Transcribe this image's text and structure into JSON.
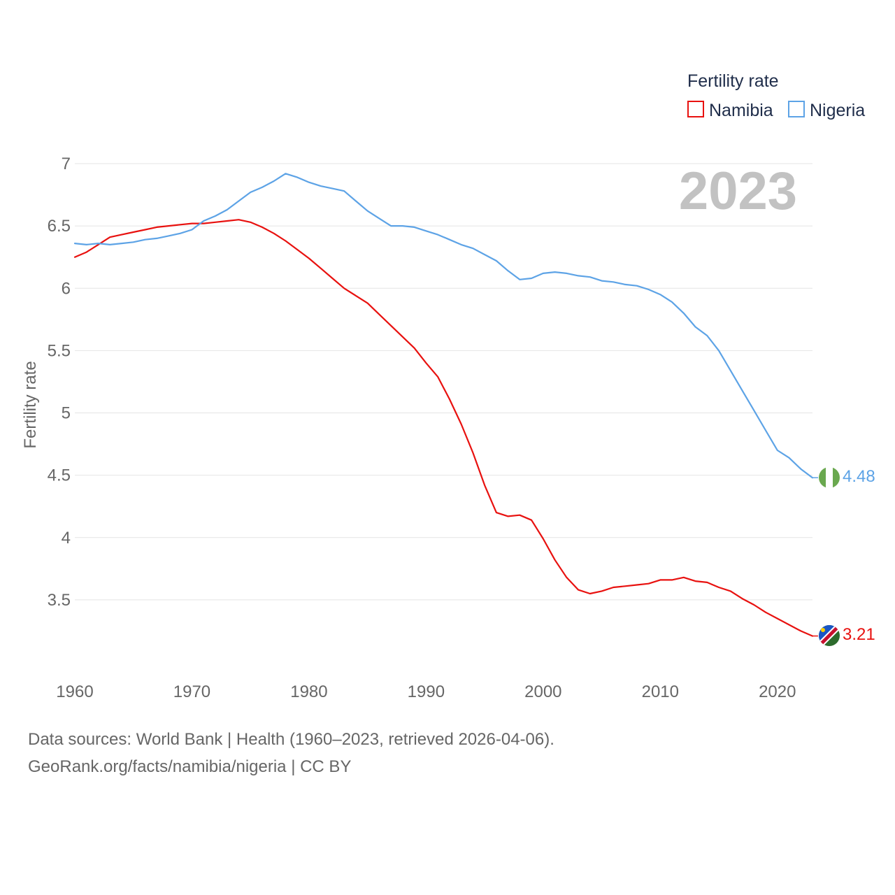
{
  "chart_data": {
    "type": "line",
    "title": "",
    "xlabel": "",
    "ylabel": "Fertility rate",
    "xlim": [
      1960,
      2023
    ],
    "ylim": [
      3.0,
      7.0
    ],
    "x_ticks": [
      "1960",
      "1970",
      "1980",
      "1990",
      "2000",
      "2010",
      "2020"
    ],
    "y_ticks": [
      "7",
      "6.5",
      "6",
      "5.5",
      "5",
      "4.5",
      "4",
      "3.5"
    ],
    "year_label": "2023",
    "legend": {
      "title": "Fertility rate",
      "position": "top-right",
      "entries": [
        "Namibia",
        "Nigeria"
      ]
    },
    "x": [
      1960,
      1961,
      1962,
      1963,
      1964,
      1965,
      1966,
      1967,
      1968,
      1969,
      1970,
      1971,
      1972,
      1973,
      1974,
      1975,
      1976,
      1977,
      1978,
      1979,
      1980,
      1981,
      1982,
      1983,
      1984,
      1985,
      1986,
      1987,
      1988,
      1989,
      1990,
      1991,
      1992,
      1993,
      1994,
      1995,
      1996,
      1997,
      1998,
      1999,
      2000,
      2001,
      2002,
      2003,
      2004,
      2005,
      2006,
      2007,
      2008,
      2009,
      2010,
      2011,
      2012,
      2013,
      2014,
      2015,
      2016,
      2017,
      2018,
      2019,
      2020,
      2021,
      2022,
      2023
    ],
    "series": [
      {
        "name": "Namibia",
        "color": "#e8110f",
        "end_label": "3.21",
        "values": [
          6.25,
          6.29,
          6.35,
          6.41,
          6.43,
          6.45,
          6.47,
          6.49,
          6.5,
          6.51,
          6.52,
          6.52,
          6.53,
          6.54,
          6.55,
          6.53,
          6.49,
          6.44,
          6.38,
          6.31,
          6.24,
          6.16,
          6.08,
          6.0,
          5.94,
          5.88,
          5.79,
          5.7,
          5.61,
          5.52,
          5.4,
          5.29,
          5.11,
          4.91,
          4.68,
          4.42,
          4.2,
          4.17,
          4.18,
          4.14,
          3.99,
          3.82,
          3.68,
          3.58,
          3.55,
          3.57,
          3.6,
          3.61,
          3.62,
          3.63,
          3.66,
          3.66,
          3.68,
          3.65,
          3.64,
          3.6,
          3.57,
          3.51,
          3.46,
          3.4,
          3.35,
          3.3,
          3.25,
          3.21
        ]
      },
      {
        "name": "Nigeria",
        "color": "#5da3e6",
        "end_label": "4.48",
        "values": [
          6.36,
          6.35,
          6.36,
          6.35,
          6.36,
          6.37,
          6.39,
          6.4,
          6.42,
          6.44,
          6.47,
          6.54,
          6.58,
          6.63,
          6.7,
          6.77,
          6.81,
          6.86,
          6.92,
          6.89,
          6.85,
          6.82,
          6.8,
          6.78,
          6.7,
          6.62,
          6.56,
          6.5,
          6.5,
          6.49,
          6.46,
          6.43,
          6.39,
          6.35,
          6.32,
          6.27,
          6.22,
          6.14,
          6.07,
          6.08,
          6.12,
          6.13,
          6.12,
          6.1,
          6.09,
          6.06,
          6.05,
          6.03,
          6.02,
          5.99,
          5.95,
          5.89,
          5.8,
          5.69,
          5.62,
          5.5,
          5.34,
          5.18,
          5.02,
          4.86,
          4.7,
          4.64,
          4.55,
          4.48
        ]
      }
    ]
  },
  "source_lines": [
    "Data sources: World Bank | Health (1960–2023, retrieved 2026-04-06).",
    "GeoRank.org/facts/namibia/nigeria | CC BY"
  ],
  "colors": {
    "grid": "#e4e4e4",
    "tick_text": "#666666",
    "legend_text": "#1f2d4a",
    "year_text": "#c2c2c2"
  }
}
